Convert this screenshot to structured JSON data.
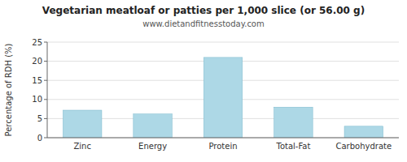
{
  "chart_data": {
    "type": "bar",
    "title": "Vegetarian meatloaf or patties per 1,000 slice (or 56.00 g)",
    "subtitle": "www.dietandfitnesstoday.com",
    "categories": [
      "Zinc",
      "Energy",
      "Protein",
      "Total-Fat",
      "Carbohydrate"
    ],
    "values": [
      7.2,
      6.2,
      21.0,
      8.0,
      3.0
    ],
    "color": "#add8e6",
    "ylabel": "Percentage of RDH (%)",
    "ylim": [
      0,
      25
    ],
    "yticks": [
      0,
      5,
      10,
      15,
      20,
      25
    ],
    "grid": true
  }
}
